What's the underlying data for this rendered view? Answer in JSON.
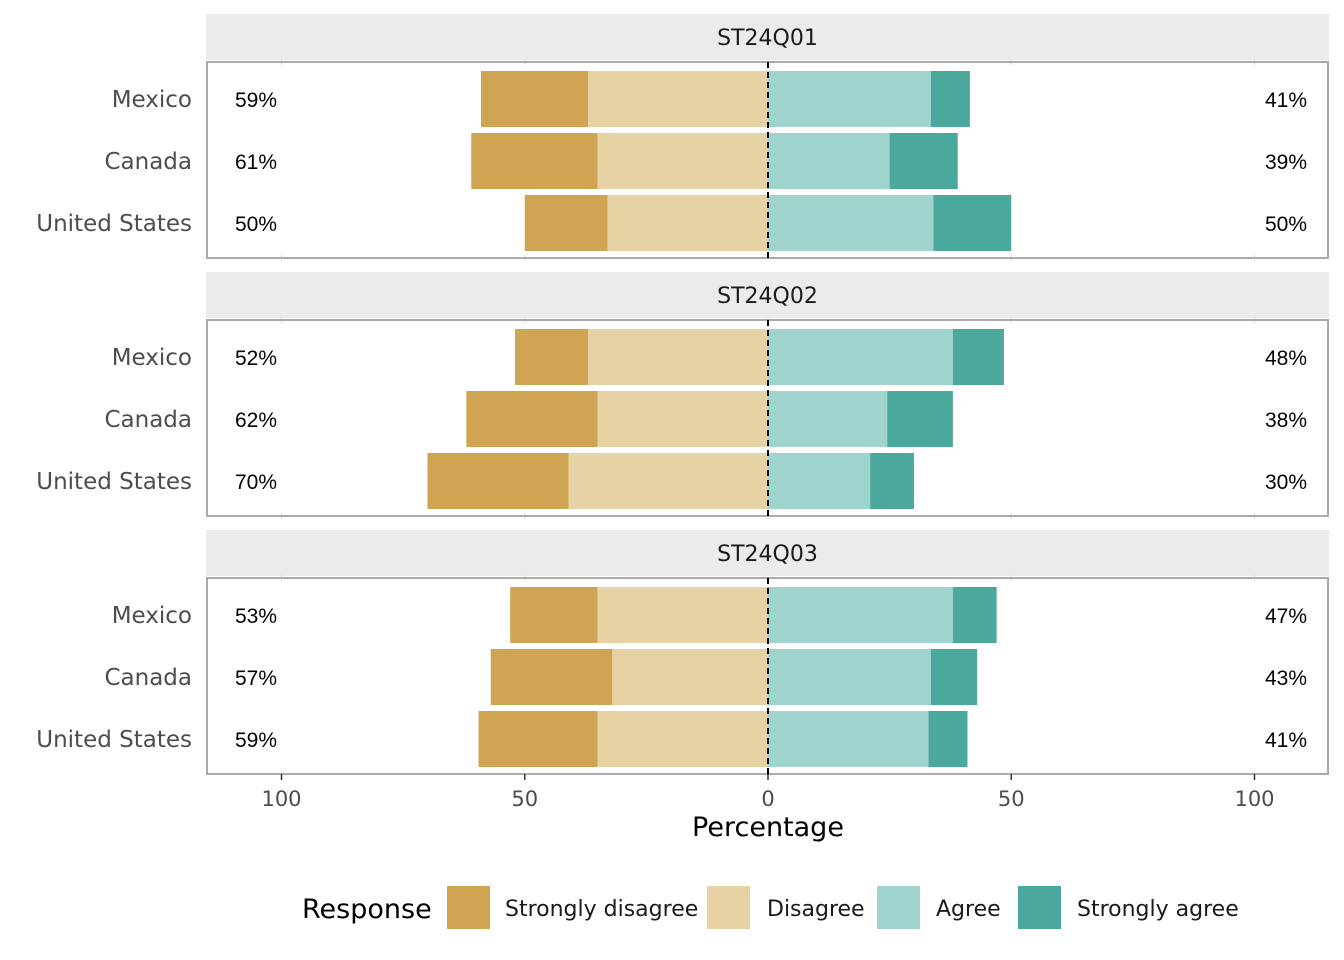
{
  "chart_data": {
    "type": "bar",
    "orientation": "horizontal-diverging",
    "xlabel": "Percentage",
    "x_tick_labels": [
      "100",
      "50",
      "0",
      "50",
      "100"
    ],
    "xlim": [
      -100,
      100
    ],
    "categories": [
      "Mexico",
      "Canada",
      "United States"
    ],
    "legend": {
      "title": "Response",
      "position": "bottom",
      "entries": [
        "Strongly disagree",
        "Disagree",
        "Agree",
        "Strongly agree"
      ]
    },
    "colors": {
      "Strongly disagree": "#CFA553",
      "Disagree": "#E6D2A3",
      "Agree": "#9FD3CD",
      "Strongly agree": "#4AA89C"
    },
    "panels": [
      {
        "title": "ST24Q01",
        "rows": [
          {
            "country": "Mexico",
            "strongly_disagree": 22,
            "disagree": 37,
            "agree": 33.5,
            "strongly_agree": 8,
            "left_label": "59%",
            "right_label": "41%"
          },
          {
            "country": "Canada",
            "strongly_disagree": 26,
            "disagree": 35,
            "agree": 25,
            "strongly_agree": 14,
            "left_label": "61%",
            "right_label": "39%"
          },
          {
            "country": "United States",
            "strongly_disagree": 17,
            "disagree": 33,
            "agree": 34,
            "strongly_agree": 16,
            "left_label": "50%",
            "right_label": "50%"
          }
        ]
      },
      {
        "title": "ST24Q02",
        "rows": [
          {
            "country": "Mexico",
            "strongly_disagree": 15,
            "disagree": 37,
            "agree": 38,
            "strongly_agree": 10.5,
            "left_label": "52%",
            "right_label": "48%"
          },
          {
            "country": "Canada",
            "strongly_disagree": 27,
            "disagree": 35,
            "agree": 24.5,
            "strongly_agree": 13.5,
            "left_label": "62%",
            "right_label": "38%"
          },
          {
            "country": "United States",
            "strongly_disagree": 29,
            "disagree": 41,
            "agree": 21,
            "strongly_agree": 9,
            "left_label": "70%",
            "right_label": "30%"
          }
        ]
      },
      {
        "title": "ST24Q03",
        "rows": [
          {
            "country": "Mexico",
            "strongly_disagree": 18,
            "disagree": 35,
            "agree": 38,
            "strongly_agree": 9,
            "left_label": "53%",
            "right_label": "47%"
          },
          {
            "country": "Canada",
            "strongly_disagree": 25,
            "disagree": 32,
            "agree": 33.5,
            "strongly_agree": 9.5,
            "left_label": "57%",
            "right_label": "43%"
          },
          {
            "country": "United States",
            "strongly_disagree": 24.5,
            "disagree": 35,
            "agree": 33,
            "strongly_agree": 8,
            "left_label": "59%",
            "right_label": "41%"
          }
        ]
      }
    ]
  }
}
